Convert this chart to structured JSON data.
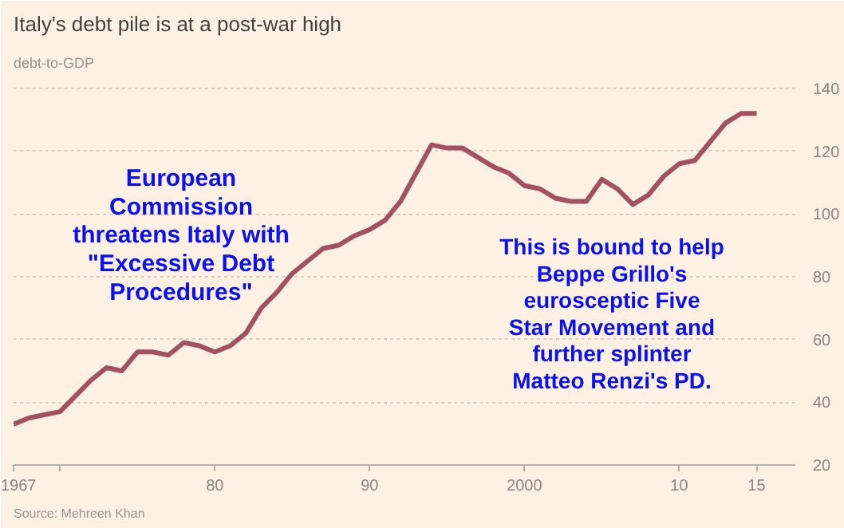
{
  "chart_data": {
    "type": "line",
    "title": "Italy's debt pile is at a post-war high",
    "subtitle": "debt-to-GDP",
    "x": [
      1967,
      1968,
      1969,
      1970,
      1971,
      1972,
      1973,
      1974,
      1975,
      1976,
      1977,
      1978,
      1979,
      1980,
      1981,
      1982,
      1983,
      1984,
      1985,
      1986,
      1987,
      1988,
      1989,
      1990,
      1991,
      1992,
      1993,
      1994,
      1995,
      1996,
      1997,
      1998,
      1999,
      2000,
      2001,
      2002,
      2003,
      2004,
      2005,
      2006,
      2007,
      2008,
      2009,
      2010,
      2011,
      2012,
      2013,
      2014,
      2015
    ],
    "series": [
      {
        "color": "#a3505f",
        "values": [
          33,
          35,
          36,
          37,
          42,
          47,
          51,
          50,
          56,
          56,
          55,
          59,
          58,
          56,
          58,
          62,
          70,
          75,
          81,
          85,
          89,
          90,
          93,
          95,
          98,
          104,
          113,
          122,
          121,
          121,
          118,
          115,
          113,
          109,
          108,
          105,
          104,
          104,
          111,
          108,
          103,
          106,
          112,
          116,
          117,
          123,
          129,
          132,
          132
        ]
      }
    ],
    "xlim": [
      1967,
      2017.5
    ],
    "xticks": [
      1967,
      {
        "value": 1970,
        "label": null
      },
      {
        "value": 1980,
        "label": "80"
      },
      {
        "value": 1990,
        "label": "90"
      },
      2000,
      {
        "value": 2010,
        "label": "10"
      },
      {
        "value": 2015,
        "label": "15"
      }
    ],
    "ylim": [
      20,
      143
    ],
    "yticks": [
      20,
      40,
      60,
      80,
      100,
      120,
      140
    ],
    "grid": "y",
    "marker": "none",
    "line_style": "solid",
    "annotations": [
      "European\nCommission\nthreatens Italy with\n\"Excessive Debt\nProcedures\"",
      "This is bound to help\nBeppe Grillo's\neurosceptic Five\nStar Movement and\nfurther splinter\nMatteo Renzi's PD.",
      "Source: Mehreen Khan"
    ]
  }
}
